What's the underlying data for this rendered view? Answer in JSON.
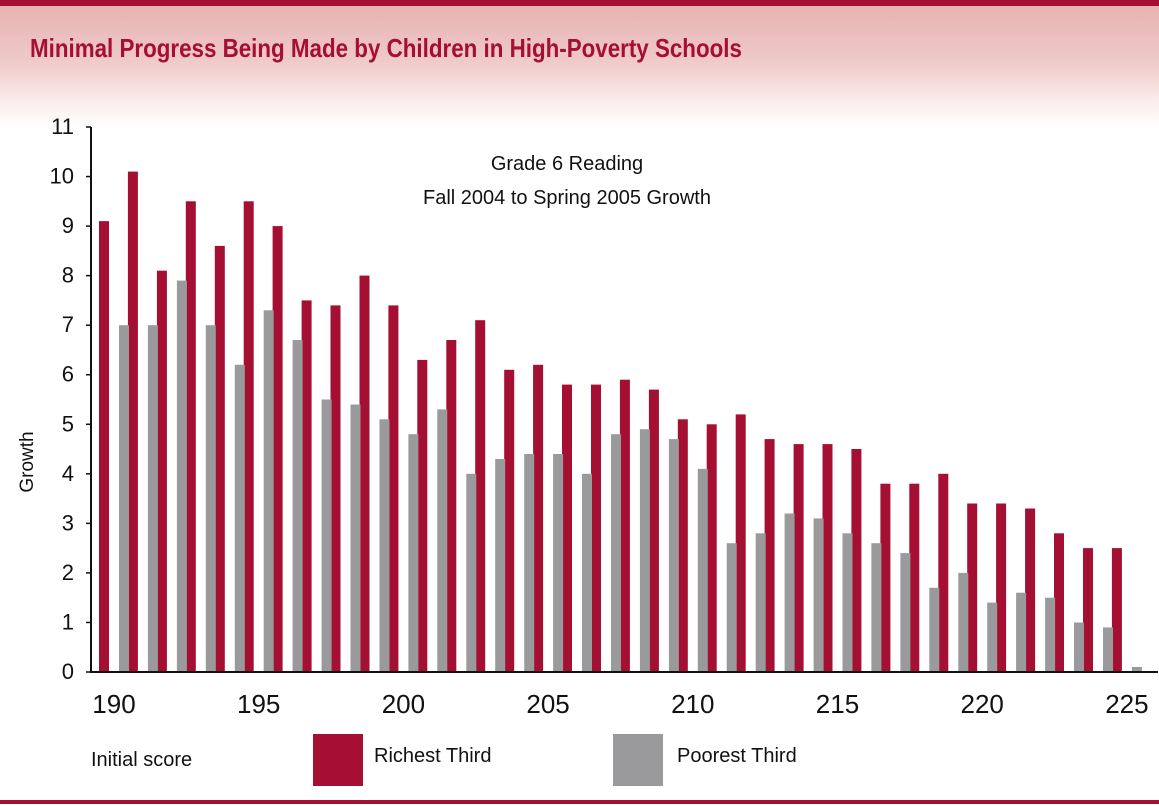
{
  "title": "Minimal Progress Being Made by Children in High-Poverty Schools",
  "colors": {
    "accent": "#a50f32",
    "richest": "#a50f32",
    "poorest": "#9a9a9c"
  },
  "chart_data": {
    "type": "bar",
    "title_lines": [
      "Grade 6 Reading",
      "Fall 2004 to Spring 2005 Growth"
    ],
    "xlabel": "Initial score",
    "ylabel": "Growth",
    "ylim": [
      0,
      11
    ],
    "yticks": [
      "0",
      "1",
      "2",
      "3",
      "4",
      "5",
      "6",
      "7",
      "8",
      "9",
      "10",
      "11"
    ],
    "xlim": [
      190,
      225
    ],
    "xticks": [
      "190",
      "195",
      "200",
      "205",
      "210",
      "215",
      "220",
      "225"
    ],
    "x": [
      190,
      191,
      192,
      193,
      194,
      195,
      196,
      197,
      198,
      199,
      200,
      201,
      202,
      203,
      204,
      205,
      206,
      207,
      208,
      209,
      210,
      211,
      212,
      213,
      214,
      215,
      216,
      217,
      218,
      219,
      220,
      221,
      222,
      223,
      224,
      225
    ],
    "series": [
      {
        "name": "Richest Third",
        "values": [
          9.1,
          10.1,
          8.1,
          9.5,
          8.6,
          9.5,
          9.0,
          7.5,
          7.4,
          8.0,
          7.4,
          6.3,
          6.7,
          7.1,
          6.1,
          6.2,
          5.8,
          5.8,
          5.9,
          5.7,
          5.1,
          5.0,
          5.2,
          4.7,
          4.6,
          4.6,
          4.5,
          3.8,
          3.8,
          4.0,
          3.4,
          3.4,
          3.3,
          2.8,
          2.5,
          2.5
        ]
      },
      {
        "name": "Poorest Third",
        "values": [
          7.0,
          7.0,
          7.9,
          7.0,
          6.2,
          7.3,
          6.7,
          5.5,
          5.4,
          5.1,
          4.8,
          5.3,
          4.0,
          4.3,
          4.4,
          4.4,
          4.0,
          4.8,
          4.9,
          4.7,
          4.1,
          2.6,
          2.8,
          3.2,
          3.1,
          2.8,
          2.6,
          2.4,
          1.7,
          2.0,
          1.4,
          1.6,
          1.5,
          1.0,
          0.9,
          0.1
        ]
      }
    ],
    "legend_position": "bottom",
    "grid": false
  }
}
